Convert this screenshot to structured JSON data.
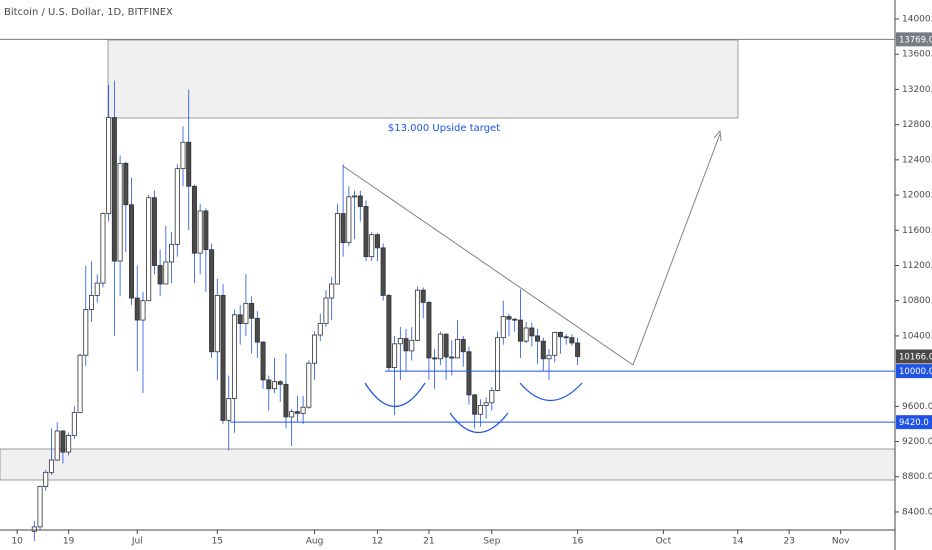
{
  "chart_data": {
    "type": "candlestick",
    "title": "Bitcoin / U.S. Dollar, 1D, BITFINEX",
    "annotation": "$13.000 Upside target",
    "up_color": "#ffffff",
    "down_color": "#4a4a4a",
    "x": [
      12,
      13,
      14,
      15,
      16,
      17,
      18,
      19,
      20,
      21,
      22,
      23,
      24,
      25,
      26,
      27,
      28,
      29,
      30,
      31,
      32,
      33,
      34,
      35,
      36,
      37,
      38,
      39,
      40,
      41,
      42,
      43,
      44,
      45,
      46,
      47,
      48,
      49,
      50,
      51,
      52,
      53,
      54,
      55,
      56,
      57,
      58,
      59,
      60,
      61,
      62,
      63,
      64,
      65,
      66,
      67,
      68,
      69,
      70,
      71,
      72,
      73,
      74,
      75,
      76,
      77,
      78,
      79,
      80,
      81,
      82,
      83,
      84,
      85,
      86,
      87,
      88,
      89,
      90,
      91,
      92,
      93,
      94,
      95,
      96,
      97,
      98,
      99,
      100,
      101,
      102,
      103,
      104,
      105,
      106,
      107
    ],
    "open": [
      8180,
      8230,
      8690,
      8850,
      8990,
      9320,
      9080,
      9270,
      9530,
      10180,
      10700,
      10860,
      11000,
      11790,
      12880,
      11250,
      12360,
      11890,
      10830,
      10580,
      10800,
      11970,
      11200,
      10990,
      11240,
      11440,
      12300,
      12600,
      12100,
      11340,
      11820,
      11380,
      10220,
      10860,
      9440,
      9690,
      10640,
      10540,
      10770,
      10600,
      10330,
      9900,
      9800,
      9880,
      9850,
      9480,
      9540,
      9520,
      9590,
      10090,
      10410,
      10540,
      10830,
      10990,
      11790,
      11460,
      11980,
      11990,
      11870,
      11300,
      11550,
      11400,
      10860,
      10040,
      10310,
      10370,
      10230,
      10350,
      10920,
      10780,
      10150,
      10140,
      10420,
      10160,
      10150,
      10360,
      10220,
      9730,
      9510,
      9610,
      9640,
      9780,
      10380,
      10620,
      10590,
      10580,
      10340,
      10490,
      10400,
      10340,
      10140,
      10180,
      10440,
      10390,
      10380,
      10320
    ],
    "high": [
      8300,
      8700,
      8880,
      9350,
      9420,
      9330,
      9300,
      9600,
      10200,
      11200,
      11250,
      11100,
      11800,
      13250,
      13300,
      12450,
      12380,
      12200,
      11200,
      10900,
      12000,
      12050,
      11380,
      11650,
      11580,
      12350,
      12780,
      13200,
      12120,
      11900,
      11850,
      11450,
      11050,
      10990,
      9950,
      10700,
      10750,
      11100,
      10850,
      10680,
      10340,
      9950,
      10150,
      9900,
      10200,
      9570,
      9720,
      9720,
      10120,
      10450,
      10650,
      10920,
      11070,
      11900,
      12350,
      12100,
      12050,
      12050,
      11940,
      11580,
      11570,
      11450,
      10880,
      10400,
      10500,
      10480,
      10500,
      10960,
      10950,
      10800,
      10250,
      10450,
      10430,
      10350,
      10580,
      10400,
      10280,
      9740,
      9680,
      9700,
      9820,
      10450,
      10800,
      10650,
      10600,
      10930,
      10560,
      10550,
      10480,
      10380,
      10250,
      10450,
      10450,
      10420,
      10420,
      10380
    ],
    "low": [
      8070,
      8200,
      8640,
      8820,
      8980,
      8950,
      9040,
      9230,
      9520,
      10060,
      10560,
      10780,
      10950,
      11700,
      10400,
      10850,
      11350,
      10750,
      10000,
      9750,
      10800,
      11100,
      10850,
      10990,
      11000,
      11300,
      12100,
      11600,
      11000,
      11100,
      10900,
      10150,
      9900,
      9400,
      9100,
      9300,
      10300,
      10400,
      10200,
      10150,
      9800,
      9550,
      9750,
      9650,
      9350,
      9150,
      9420,
      9400,
      9570,
      9900,
      10340,
      10500,
      10580,
      10990,
      11300,
      11420,
      11500,
      11700,
      11250,
      11250,
      11250,
      10800,
      10000,
      9500,
      9900,
      10000,
      10120,
      10340,
      10600,
      9900,
      9800,
      10070,
      9900,
      9950,
      10150,
      10050,
      9620,
      9350,
      9370,
      9460,
      9550,
      9770,
      10300,
      10400,
      10450,
      10150,
      10320,
      10280,
      10080,
      10000,
      9900,
      10100,
      10200,
      10300,
      10290,
      10070
    ],
    "close": [
      8230,
      8690,
      8850,
      8990,
      9320,
      9080,
      9270,
      9530,
      10180,
      10700,
      10860,
      11000,
      11790,
      12880,
      11250,
      12360,
      11890,
      10830,
      10580,
      10800,
      11970,
      11200,
      10990,
      11240,
      11440,
      12300,
      12600,
      12100,
      11340,
      11820,
      11380,
      10220,
      10860,
      9440,
      9690,
      10640,
      10540,
      10770,
      10600,
      10330,
      9900,
      9800,
      9880,
      9850,
      9480,
      9540,
      9520,
      9590,
      10090,
      10410,
      10540,
      10830,
      10990,
      11790,
      11460,
      11980,
      11990,
      11870,
      11300,
      11550,
      11400,
      10860,
      10040,
      10310,
      10370,
      10230,
      10350,
      10920,
      10780,
      10150,
      10140,
      10420,
      10160,
      10150,
      10360,
      10220,
      9730,
      9510,
      9610,
      9640,
      9780,
      10380,
      10620,
      10590,
      10580,
      10340,
      10490,
      10400,
      10340,
      10140,
      10180,
      10440,
      10390,
      10380,
      10320,
      10166
    ],
    "xlim": [
      6,
      162.5
    ],
    "ylim": [
      8195,
      14216
    ],
    "xticks": [
      {
        "value": 9,
        "label": "10"
      },
      {
        "value": 18,
        "label": "19"
      },
      {
        "value": 30,
        "label": "Jul"
      },
      {
        "value": 44,
        "label": "15"
      },
      {
        "value": 61,
        "label": "Aug"
      },
      {
        "value": 72,
        "label": "12"
      },
      {
        "value": 81,
        "label": "21"
      },
      {
        "value": 92,
        "label": "Sep"
      },
      {
        "value": 107,
        "label": "16"
      },
      {
        "value": 122,
        "label": "Oct"
      },
      {
        "value": 135,
        "label": "14"
      },
      {
        "value": 144,
        "label": "23"
      },
      {
        "value": 153,
        "label": "Nov"
      }
    ],
    "yticks": [
      {
        "value": 8400,
        "label": "8400.0"
      },
      {
        "value": 8800,
        "label": "8800.0"
      },
      {
        "value": 9200,
        "label": "9200.0"
      },
      {
        "value": 9600,
        "label": "9600.0"
      },
      {
        "value": 10400,
        "label": "10400.0"
      },
      {
        "value": 10800,
        "label": "10800.0"
      },
      {
        "value": 11200,
        "label": "11200.0"
      },
      {
        "value": 11600,
        "label": "11600.0"
      },
      {
        "value": 12000,
        "label": "12000.0"
      },
      {
        "value": 12400,
        "label": "12400.0"
      },
      {
        "value": 12800,
        "label": "12800.0"
      },
      {
        "value": 13200,
        "label": "13200.0"
      },
      {
        "value": 13600,
        "label": "13600.0"
      },
      {
        "value": 14000,
        "label": "14000.0"
      }
    ],
    "price_lines": [
      {
        "value": 13769,
        "label": "13769.0",
        "color": "#787b86"
      },
      {
        "value": 10166,
        "label": "10166.0",
        "color": "#4a4a4a"
      },
      {
        "value": 10000,
        "label": "10000.0",
        "color": "#1e53e5"
      },
      {
        "value": 9420,
        "label": "9420.0",
        "color": "#1e53e5"
      }
    ]
  }
}
